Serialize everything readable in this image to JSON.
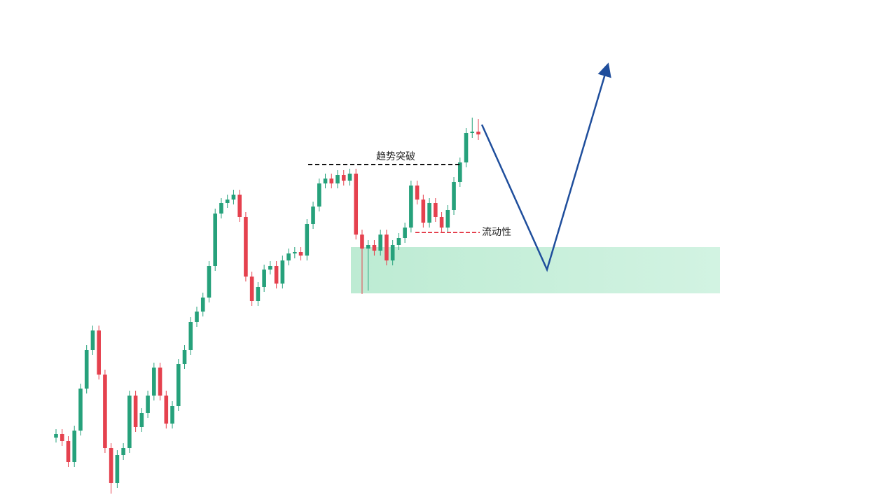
{
  "chart_data": {
    "type": "candlestick",
    "ylim": [
      3,
      720
    ],
    "up_color": "#26a17b",
    "down_color": "#e5414e",
    "annotations": [
      "趋势突破",
      "流动性"
    ],
    "series": [
      {
        "open": [
          95,
          100,
          90,
          60,
          105,
          165,
          220,
          248,
          185,
          80,
          30,
          70,
          80,
          155,
          110,
          130,
          155,
          195,
          155,
          115,
          140,
          200,
          220,
          260,
          275,
          295,
          340,
          415,
          430,
          435,
          442,
          410,
          325,
          290,
          310,
          335,
          340,
          315,
          348,
          358,
          360,
          355,
          400,
          425,
          458,
          465,
          458,
          470,
          462,
          472,
          385,
          365,
          370,
          362,
          385,
          348,
          370,
          380,
          395,
          455,
          435,
          402,
          430,
          410,
          395,
          420,
          460,
          488,
          530,
          532
        ],
        "high": [
          107,
          107,
          97,
          112,
          172,
          227,
          255,
          255,
          192,
          87,
          77,
          87,
          162,
          162,
          137,
          162,
          202,
          202,
          162,
          147,
          207,
          227,
          267,
          282,
          302,
          347,
          422,
          437,
          442,
          449,
          449,
          417,
          332,
          317,
          342,
          347,
          347,
          355,
          365,
          367,
          367,
          407,
          432,
          465,
          472,
          472,
          477,
          477,
          479,
          479,
          392,
          377,
          377,
          392,
          392,
          377,
          387,
          402,
          462,
          462,
          442,
          437,
          437,
          417,
          427,
          467,
          495,
          537,
          552,
          550
        ],
        "low": [
          88,
          83,
          53,
          53,
          98,
          158,
          213,
          178,
          73,
          15,
          23,
          63,
          73,
          103,
          103,
          123,
          148,
          148,
          108,
          108,
          133,
          193,
          213,
          253,
          268,
          288,
          333,
          408,
          423,
          428,
          403,
          318,
          283,
          283,
          303,
          328,
          308,
          308,
          341,
          351,
          348,
          348,
          393,
          418,
          451,
          451,
          451,
          455,
          455,
          378,
          300,
          305,
          355,
          355,
          341,
          341,
          363,
          373,
          388,
          428,
          395,
          395,
          403,
          388,
          388,
          413,
          453,
          481,
          523,
          520
        ],
        "close": [
          100,
          90,
          60,
          105,
          165,
          220,
          248,
          185,
          80,
          30,
          70,
          80,
          155,
          110,
          130,
          155,
          195,
          155,
          115,
          140,
          200,
          220,
          260,
          275,
          295,
          340,
          415,
          430,
          435,
          442,
          410,
          325,
          290,
          310,
          335,
          340,
          315,
          348,
          358,
          360,
          355,
          400,
          425,
          458,
          465,
          458,
          470,
          462,
          472,
          385,
          365,
          370,
          362,
          385,
          348,
          370,
          380,
          395,
          455,
          435,
          402,
          430,
          410,
          395,
          420,
          460,
          488,
          530,
          532,
          528
        ]
      }
    ]
  }
}
